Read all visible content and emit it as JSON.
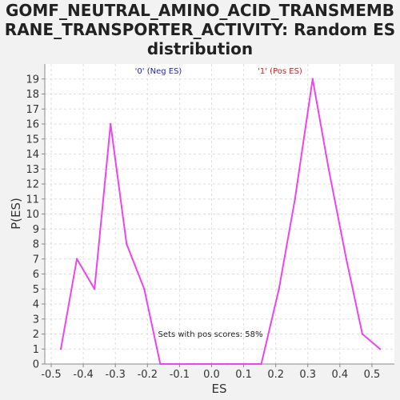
{
  "chart_data": {
    "type": "line",
    "title_lines": [
      "GOMF_NEUTRAL_AMINO_ACID_TRANSMEMB",
      "RANE_TRANSPORTER_ACTIVITY: Random ES",
      "distribution"
    ],
    "xlabel": "ES",
    "ylabel": "P(ES)",
    "xlim": [
      -0.52,
      0.57
    ],
    "ylim": [
      0,
      20
    ],
    "x_ticks": [
      -0.5,
      -0.4,
      -0.3,
      -0.2,
      -0.1,
      0.0,
      0.1,
      0.2,
      0.3,
      0.4,
      0.5
    ],
    "x_tick_labels": [
      "-0.5",
      "-0.4",
      "-0.3",
      "-0.2",
      "-0.1",
      "0.0",
      "0.1",
      "0.2",
      "0.3",
      "0.4",
      "0.5"
    ],
    "y_ticks": [
      0,
      1,
      2,
      3,
      4,
      5,
      6,
      7,
      8,
      9,
      10,
      11,
      12,
      13,
      14,
      15,
      16,
      17,
      18,
      19
    ],
    "y_tick_labels": [
      "0",
      "1",
      "2",
      "3",
      "4",
      "5",
      "6",
      "7",
      "8",
      "9",
      "10",
      "11",
      "12",
      "13",
      "14",
      "15",
      "16",
      "17",
      "18",
      "19"
    ],
    "grid": true,
    "series": [
      {
        "color": "#ee44ee",
        "x": [
          -0.47,
          -0.42,
          -0.365,
          -0.315,
          -0.265,
          -0.21,
          -0.16,
          -0.11,
          -0.055,
          0.0,
          0.05,
          0.105,
          0.155,
          0.21,
          0.26,
          0.315,
          0.365,
          0.42,
          0.47,
          0.525
        ],
        "y": [
          1,
          7,
          5,
          16,
          8,
          5,
          0,
          0,
          0,
          0,
          0,
          0,
          0,
          5,
          11,
          19,
          13,
          7,
          2,
          1
        ]
      }
    ],
    "legend": {
      "placement": "top",
      "items": [
        {
          "label": "'0' (Neg ES)",
          "color": "#2222cc"
        },
        {
          "label": "'1' (Pos ES)",
          "color": "#cc2222"
        }
      ]
    },
    "annotation": "Sets with pos scores: 58%"
  }
}
